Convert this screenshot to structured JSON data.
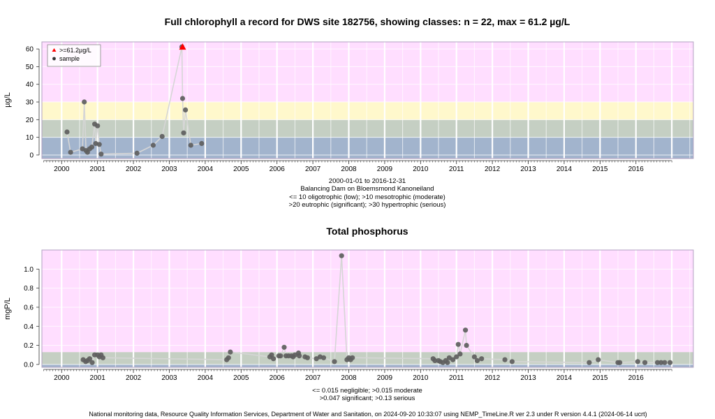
{
  "footer": "National monitoring data, Resource Quality Information Services, Department of Water and Sanitation, on 2024-09-20 10:33:07 using NEMP_TimeLine.R ver 2.3 under R version 4.4.1 (2024-06-14 ucrt)",
  "colors": {
    "pink": "#ffdeff",
    "yellow": "#fff8cc",
    "green": "#c5cfc3",
    "blue": "#a2b4cd",
    "point": "#5e5e5e",
    "line": "#d6d6d6",
    "max_marker": "#ff0000"
  },
  "chart_data": [
    {
      "type": "scatter",
      "title": "Full chlorophyll a record for DWS site 182756, showing classes: n = 22, max = 61.2 µg/L",
      "ylabel": "µg/L",
      "xlabel": "",
      "ylim": [
        -2,
        64
      ],
      "xlim": [
        1999.45,
        2017.6
      ],
      "yticks": [
        0,
        10,
        20,
        30,
        40,
        50,
        60
      ],
      "xticks": [
        2000,
        2001,
        2002,
        2003,
        2004,
        2005,
        2006,
        2007,
        2008,
        2009,
        2010,
        2011,
        2012,
        2013,
        2014,
        2015,
        2016
      ],
      "bands": [
        {
          "from": -2,
          "to": 10,
          "color": "blue"
        },
        {
          "from": 10,
          "to": 20,
          "color": "green"
        },
        {
          "from": 20,
          "to": 30,
          "color": "yellow"
        },
        {
          "from": 30,
          "to": 64,
          "color": "pink"
        }
      ],
      "captions": [
        "2000-01-01 to 2016-12-31",
        "Balancing Dam on Bloemsmond Kanoneiland",
        "<= 10 oligotrophic (low); >10 mesotrophic (moderate)",
        ">20 eutrophic (significant); >30 hypertrophic (serious)"
      ],
      "legend": {
        "position": "top-left",
        "entries": [
          {
            "label": ">=61.2µg/L",
            "marker": "triangle"
          },
          {
            "label": "sample",
            "marker": "dot"
          }
        ]
      },
      "series": [
        {
          "name": "sample",
          "x": [
            2000.15,
            2000.25,
            2000.58,
            2000.63,
            2000.68,
            2000.72,
            2000.78,
            2000.84,
            2000.92,
            2000.95,
            2001.0,
            2001.05,
            2001.1,
            2002.1,
            2002.55,
            2002.8,
            2003.35,
            2003.37,
            2003.4,
            2003.45,
            2003.6,
            2003.9
          ],
          "y": [
            13,
            1.5,
            3.5,
            30,
            2.5,
            1.5,
            3.5,
            4.5,
            17.5,
            6.5,
            16.5,
            6,
            0.5,
            1,
            5.5,
            10.5,
            61.2,
            32,
            12.5,
            25.5,
            5.5,
            6.5
          ]
        }
      ],
      "max_point": {
        "x": 2003.37,
        "y": 61.2
      }
    },
    {
      "type": "scatter",
      "title": "Total phosphorus",
      "ylabel": "mgP/L",
      "xlabel": "",
      "ylim": [
        -0.03,
        1.2
      ],
      "xlim": [
        1999.45,
        2017.6
      ],
      "yticks": [
        0.0,
        0.2,
        0.4,
        0.6,
        0.8,
        1.0
      ],
      "ytick_labels": [
        "0.0",
        "0.2",
        "0.4",
        "0.6",
        "0.8",
        "1.0"
      ],
      "xticks": [
        2000,
        2001,
        2002,
        2003,
        2004,
        2005,
        2006,
        2007,
        2008,
        2009,
        2010,
        2011,
        2012,
        2013,
        2014,
        2015,
        2016
      ],
      "bands": [
        {
          "from": -0.03,
          "to": 0.0,
          "color": "blue"
        },
        {
          "from": 0.0,
          "to": 0.13,
          "color": "green"
        },
        {
          "from": 0.13,
          "to": 1.2,
          "color": "pink"
        }
      ],
      "captions": [
        "<= 0.015 negligible; >0.015 moderate",
        ">0.047 significant; >0.13 serious"
      ],
      "series": [
        {
          "name": "",
          "x": [
            2000.6,
            2000.67,
            2000.72,
            2000.78,
            2000.85,
            2000.92,
            2001.0,
            2001.05,
            2001.1,
            2001.15,
            2004.6,
            2004.65,
            2004.7,
            2005.8,
            2005.85,
            2005.9,
            2006.05,
            2006.1,
            2006.2,
            2006.25,
            2006.32,
            2006.4,
            2006.45,
            2006.5,
            2006.6,
            2006.62,
            2006.78,
            2006.85,
            2007.1,
            2007.2,
            2007.3,
            2007.6,
            2007.8,
            2007.95,
            2008.0,
            2008.05,
            2008.1,
            2010.35,
            2010.4,
            2010.5,
            2010.55,
            2010.62,
            2010.7,
            2010.75,
            2010.8,
            2010.9,
            2011.0,
            2011.05,
            2011.1,
            2011.25,
            2011.28,
            2011.5,
            2011.58,
            2011.7,
            2012.35,
            2012.55,
            2014.7,
            2014.95,
            2015.5,
            2015.55,
            2016.05,
            2016.25,
            2016.6,
            2016.7,
            2016.8,
            2016.95
          ],
          "y": [
            0.05,
            0.03,
            0.04,
            0.06,
            0.02,
            0.1,
            0.1,
            0.08,
            0.1,
            0.07,
            0.05,
            0.07,
            0.13,
            0.08,
            0.1,
            0.06,
            0.09,
            0.09,
            0.18,
            0.09,
            0.09,
            0.09,
            0.08,
            0.1,
            0.12,
            0.09,
            0.08,
            0.07,
            0.06,
            0.08,
            0.07,
            0.03,
            1.14,
            0.05,
            0.07,
            0.05,
            0.07,
            0.06,
            0.04,
            0.04,
            0.03,
            0.02,
            0.04,
            0.02,
            0.07,
            0.05,
            0.08,
            0.21,
            0.11,
            0.36,
            0.2,
            0.08,
            0.04,
            0.06,
            0.05,
            0.03,
            0.02,
            0.05,
            0.02,
            0.02,
            0.03,
            0.02,
            0.02,
            0.02,
            0.02,
            0.02
          ]
        }
      ]
    }
  ]
}
